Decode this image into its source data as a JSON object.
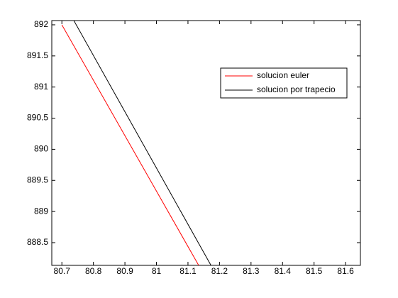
{
  "chart_data": {
    "type": "line",
    "series": [
      {
        "name": "solucion euler",
        "color": "#ff0000",
        "x": [
          80.7,
          81.134
        ],
        "values": [
          892,
          888.135
        ]
      },
      {
        "name": "solucion por trapecio",
        "color": "#000000",
        "x": [
          80.738,
          81.173
        ],
        "values": [
          892.068,
          888.135
        ]
      }
    ],
    "xlim": [
      80.668,
      81.647
    ],
    "xticks": [
      80.7,
      80.8,
      80.9,
      81,
      81.1,
      81.2,
      81.3,
      81.4,
      81.5,
      81.6
    ],
    "ylim": [
      888.135,
      892.068
    ],
    "yticks": [
      888.5,
      889,
      889.5,
      890,
      890.5,
      891,
      891.5,
      892
    ],
    "legend": "northeast",
    "grid": false
  }
}
